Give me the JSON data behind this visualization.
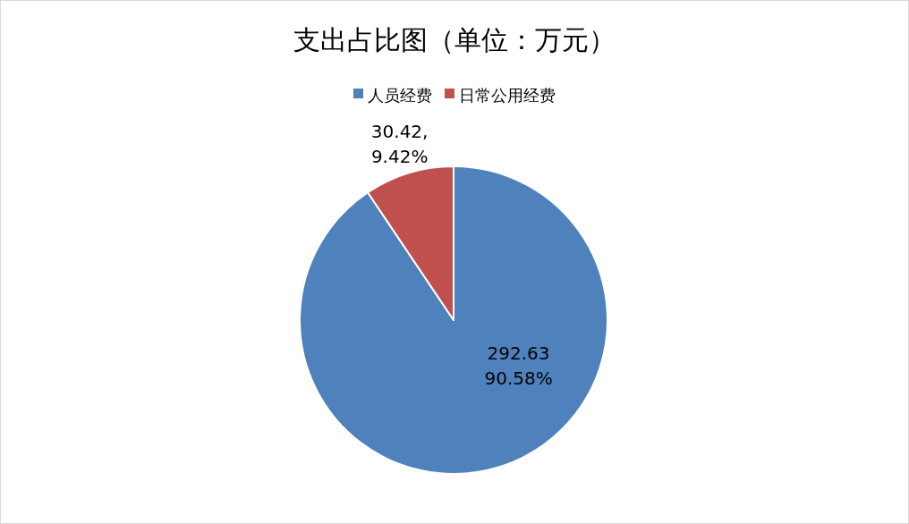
{
  "chart_data": {
    "type": "pie",
    "title": "支出占比图（单位：万元）",
    "categories": [
      "人员经费",
      "日常公用经费"
    ],
    "values": [
      292.63,
      30.42
    ],
    "colors": [
      "#4f81bd",
      "#c0504d"
    ],
    "value_labels": [
      "292.63\n90.58%",
      "30.42,\n9.42%"
    ],
    "legend": "top"
  }
}
